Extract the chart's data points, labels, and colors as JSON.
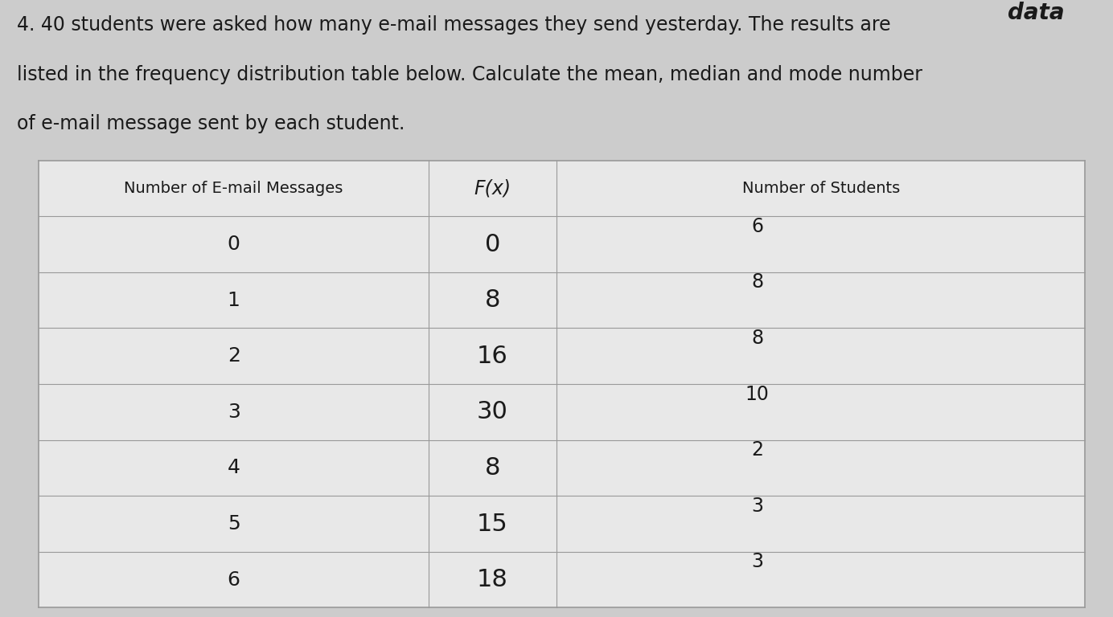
{
  "title_line1": "4. 40 students were asked how many e-mail messages they send yesterday. The results are",
  "title_line2": "listed in the frequency distribution table below. Calculate the mean, median and mode number",
  "title_line3": "of e-mail message sent by each student.",
  "watermark_top": "data",
  "col1_header": "Number of E-mail Messages",
  "col2_header": "F(x)",
  "col3_header": "Number of Students",
  "rows": [
    {
      "x": "0",
      "fx": "0",
      "students": "6"
    },
    {
      "x": "1",
      "fx": "8",
      "students": "8"
    },
    {
      "x": "2",
      "fx": "16",
      "students": "8"
    },
    {
      "x": "3",
      "fx": "30",
      "students": "10"
    },
    {
      "x": "4",
      "fx": "8",
      "students": "2"
    },
    {
      "x": "5",
      "fx": "15",
      "students": "3"
    },
    {
      "x": "6",
      "fx": "18",
      "students": "3"
    }
  ],
  "bg_color": "#cccccc",
  "table_bg": "#e8e8e8",
  "line_color": "#999999",
  "text_color": "#1a1a1a",
  "title_fontsize": 17,
  "header_fontsize": 14,
  "body_fontsize": 16,
  "hw_fontsize": 22,
  "students_fontsize": 17
}
